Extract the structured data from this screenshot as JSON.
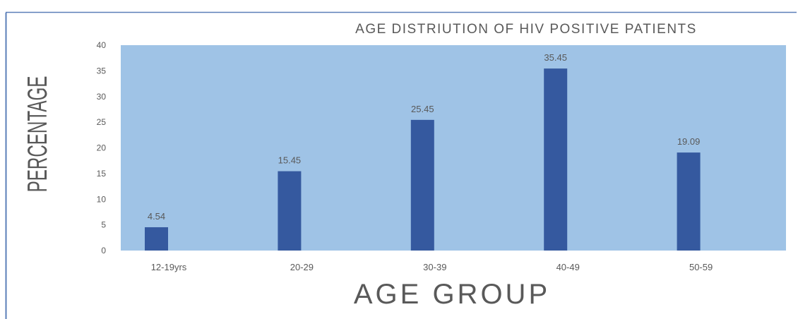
{
  "chart_data": {
    "type": "bar",
    "title": "AGE DISTRIUTION OF HIV POSITIVE PATIENTS",
    "xlabel": "AGE GROUP",
    "ylabel": "PERCENTAGE",
    "categories": [
      "12-19yrs",
      "20-29",
      "30-39",
      "40-49",
      "50-59"
    ],
    "values": [
      4.54,
      15.45,
      25.45,
      35.45,
      19.09
    ],
    "data_labels": [
      "4.54",
      "15.45",
      "25.45",
      "35.45",
      "19.09"
    ],
    "ylim": [
      0,
      40
    ],
    "yticks": [
      0,
      5,
      10,
      15,
      20,
      25,
      30,
      35,
      40
    ],
    "grid": false,
    "legend": "none",
    "colors": {
      "bar": "#35599f",
      "plot_background": "#9fc3e6",
      "frame_border": "#5b7fb8",
      "text": "#595959"
    }
  }
}
